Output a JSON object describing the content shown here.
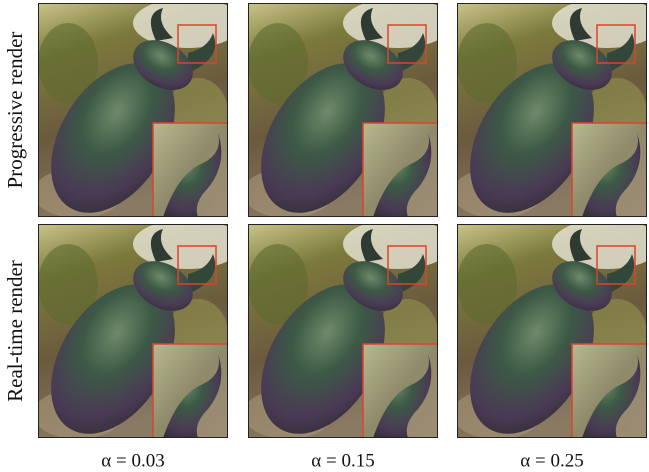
{
  "figure": {
    "row_labels": [
      "Progressive render",
      "Real-time render"
    ],
    "column_labels": [
      "α = 0.03",
      "α = 0.15",
      "α = 0.25"
    ]
  }
}
